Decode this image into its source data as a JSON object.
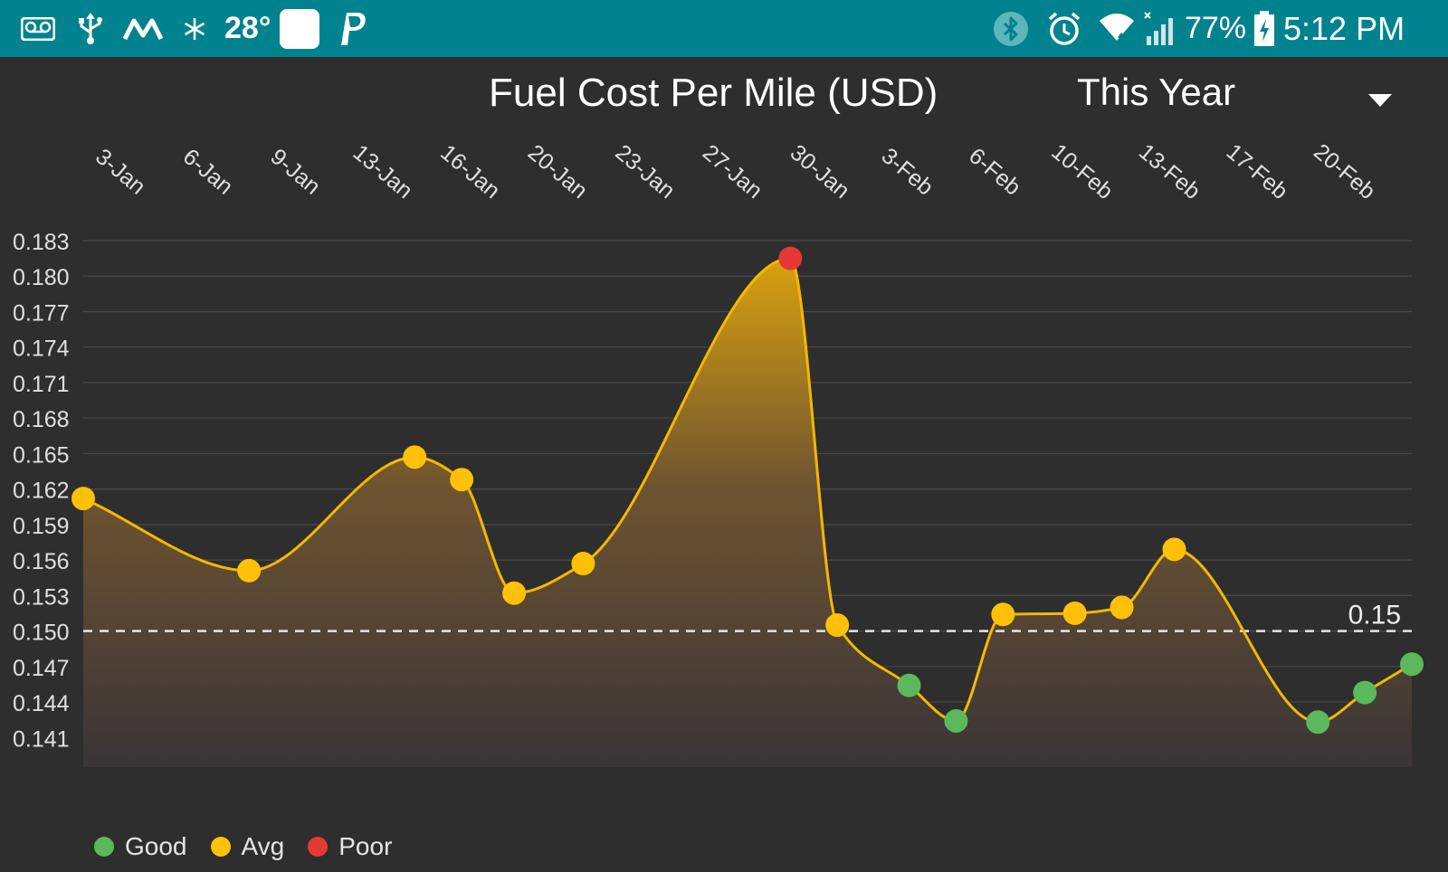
{
  "status_bar": {
    "temperature": "28°",
    "battery": "77%",
    "time": "5:12 PM",
    "left_icons": [
      "voicemail-icon",
      "usb-icon",
      "m-logo-icon",
      "snowflake-icon",
      "blank-app-icon",
      "paypal-icon"
    ],
    "right_icons": [
      "bluetooth-icon",
      "alarm-icon",
      "wifi-icon",
      "signal-icon",
      "battery-charging-icon"
    ]
  },
  "header": {
    "title": "Fuel Cost Per Mile (USD)",
    "period_selected": "This Year"
  },
  "colors": {
    "status_bar": "#00838f",
    "background": "#2e2e2e",
    "line": "#f5b800",
    "good": "#5cb85c",
    "avg": "#ffc107",
    "poor": "#e53935",
    "target_line": "#e6e6e6"
  },
  "chart_data": {
    "type": "area",
    "title": "Fuel Cost Per Mile (USD)",
    "xlabel": "",
    "ylabel": "",
    "x_ticks": [
      "3-Jan",
      "6-Jan",
      "9-Jan",
      "13-Jan",
      "16-Jan",
      "20-Jan",
      "23-Jan",
      "27-Jan",
      "30-Jan",
      "3-Feb",
      "6-Feb",
      "10-Feb",
      "13-Feb",
      "17-Feb",
      "20-Feb"
    ],
    "y_ticks": [
      "0.183",
      "0.180",
      "0.177",
      "0.174",
      "0.171",
      "0.168",
      "0.165",
      "0.162",
      "0.159",
      "0.156",
      "0.153",
      "0.150",
      "0.147",
      "0.144",
      "0.141"
    ],
    "ylim": [
      0.1385,
      0.183
    ],
    "grid": true,
    "target_value": 0.15,
    "target_label": "0.15",
    "points": [
      {
        "day": 0,
        "value": 0.1612,
        "rating": "avg"
      },
      {
        "day": 6,
        "value": 0.1551,
        "rating": "avg"
      },
      {
        "day": 12,
        "value": 0.1647,
        "rating": "avg"
      },
      {
        "day": 13.7,
        "value": 0.1628,
        "rating": "avg"
      },
      {
        "day": 15.6,
        "value": 0.1532,
        "rating": "avg"
      },
      {
        "day": 18.1,
        "value": 0.1557,
        "rating": "avg"
      },
      {
        "day": 25.6,
        "value": 0.1815,
        "rating": "poor"
      },
      {
        "day": 27.3,
        "value": 0.1505,
        "rating": "avg"
      },
      {
        "day": 29.9,
        "value": 0.1454,
        "rating": "good"
      },
      {
        "day": 31.6,
        "value": 0.1424,
        "rating": "good"
      },
      {
        "day": 33.3,
        "value": 0.1514,
        "rating": "avg"
      },
      {
        "day": 35.9,
        "value": 0.1515,
        "rating": "avg"
      },
      {
        "day": 37.6,
        "value": 0.152,
        "rating": "avg"
      },
      {
        "day": 39.5,
        "value": 0.1569,
        "rating": "avg"
      },
      {
        "day": 44.7,
        "value": 0.1423,
        "rating": "good"
      },
      {
        "day": 46.4,
        "value": 0.1448,
        "rating": "good"
      },
      {
        "day": 48.1,
        "value": 0.1472,
        "rating": "good"
      }
    ],
    "legend": [
      {
        "label": "Good",
        "rating": "good"
      },
      {
        "label": "Avg",
        "rating": "avg"
      },
      {
        "label": "Poor",
        "rating": "poor"
      }
    ],
    "legend_position": "bottom-left"
  }
}
